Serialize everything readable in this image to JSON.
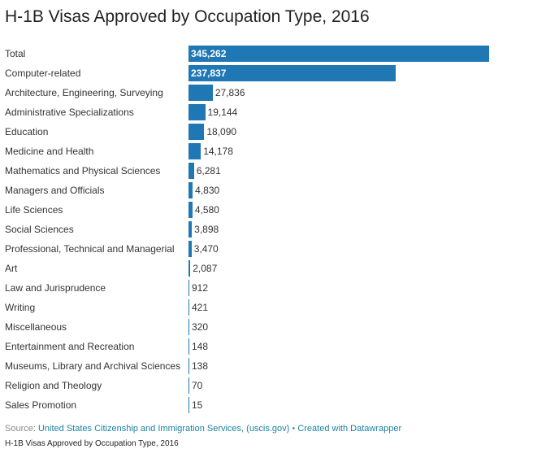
{
  "title": "H-1B Visas Approved by Occupation Type, 2016",
  "chart_data": {
    "type": "bar",
    "orientation": "horizontal",
    "title": "H-1B Visas Approved by Occupation Type, 2016",
    "categories": [
      "Total",
      "Computer-related",
      "Architecture, Engineering, Surveying",
      "Administrative Specializations",
      "Education",
      "Medicine and Health",
      "Mathematics and Physical Sciences",
      "Managers and Officials",
      "Life Sciences",
      "Social Sciences",
      "Professional, Technical and Managerial",
      "Art",
      "Law and Jurisprudence",
      "Writing",
      "Miscellaneous",
      "Entertainment and Recreation",
      "Museums, Library and Archival Sciences",
      "Religion and Theology",
      "Sales Promotion"
    ],
    "values": [
      345262,
      237837,
      27836,
      19144,
      18090,
      14178,
      6281,
      4830,
      4580,
      3898,
      3470,
      2087,
      912,
      421,
      320,
      148,
      138,
      70,
      15
    ],
    "value_labels": [
      "345,262",
      "237,837",
      "27,836",
      "19,144",
      "18,090",
      "14,178",
      "6,281",
      "4,830",
      "4,580",
      "3,898",
      "3,470",
      "2,087",
      "912",
      "421",
      "320",
      "148",
      "138",
      "70",
      "15"
    ],
    "bar_color": "#1f77b4",
    "grid": false,
    "legend": "none"
  },
  "footer": {
    "source_label": "Source:",
    "source_text": "United States Citizenship and Immigration Services, (uscis.gov)",
    "separator": "•",
    "credit": "Created with Datawrapper"
  },
  "caption": "H-1B Visas Approved by Occupation Type, 2016"
}
